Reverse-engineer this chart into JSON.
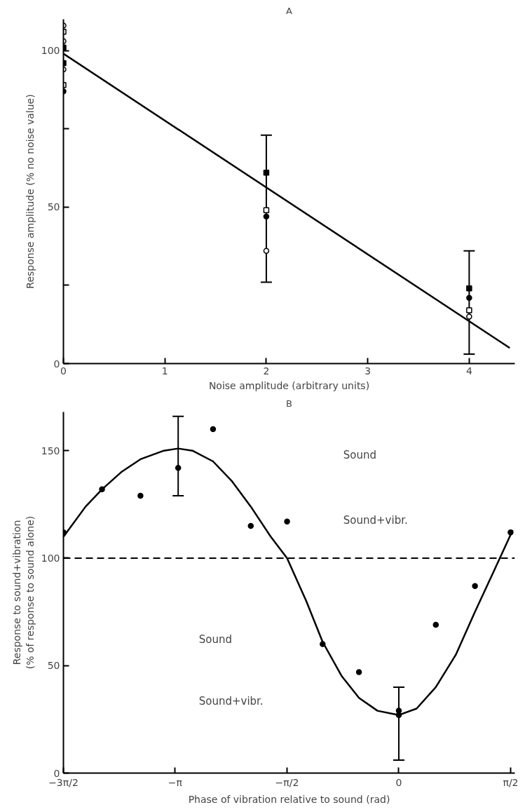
{
  "chart_data": [
    {
      "type": "scatter",
      "title": "A",
      "xlabel": "Noise amplitude (arbitrary units)",
      "ylabel": "Response amplitude (% no noise value)",
      "xlim": [
        0,
        4.45
      ],
      "ylim": [
        0,
        110
      ],
      "xticks": [
        0,
        1,
        2,
        3,
        4
      ],
      "yticks": [
        0,
        {
          "value": 25,
          "label": null
        },
        50,
        {
          "value": 75,
          "label": null
        },
        100
      ],
      "grid": false,
      "series": [
        {
          "marker": "square",
          "color": "#000000",
          "x": [
            0,
            0,
            2,
            4
          ],
          "values": [
            101,
            96,
            61,
            24
          ]
        },
        {
          "marker": "square",
          "color": "#ffffff",
          "x": [
            0,
            0,
            2,
            4
          ],
          "values": [
            106,
            89,
            49,
            17
          ],
          "errors": [
            null,
            null,
            [
              26,
              73
            ],
            [
              3,
              36
            ]
          ]
        },
        {
          "marker": "circle",
          "color": "#000000",
          "x": [
            0,
            2,
            4
          ],
          "values": [
            87,
            47,
            21
          ]
        },
        {
          "marker": "circle",
          "color": "#ffffff",
          "x": [
            0,
            0,
            0,
            2,
            4
          ],
          "values": [
            108,
            103,
            94,
            36,
            15
          ]
        },
        {
          "type": "line",
          "color": "#000000",
          "marker": "none",
          "x": [
            0,
            4.4
          ],
          "values": [
            99,
            5
          ]
        }
      ]
    },
    {
      "type": "scatter",
      "title": "B",
      "xlabel": "Phase of vibration relative to sound (rad)",
      "ylabel": "Response to sound+vibration\n(% of response to sound alone)",
      "xlim": [
        -4.712,
        1.63
      ],
      "ylim": [
        0,
        168
      ],
      "xticks": [
        {
          "value": -4.712,
          "label": "−3π/2"
        },
        {
          "value": -3.142,
          "label": "−π"
        },
        {
          "value": -1.571,
          "label": "−π/2"
        },
        0,
        {
          "value": 1.571,
          "label": "π/2"
        }
      ],
      "yticks": [
        0,
        50,
        100,
        150
      ],
      "grid": false,
      "ref_lines": [
        {
          "axis": "y",
          "value": 100,
          "line_style": "dashed",
          "color": "#000000"
        }
      ],
      "annotations": [
        "Sound",
        "Sound+vibr.",
        "Sound",
        "Sound+vibr."
      ],
      "series": [
        {
          "marker": "circle",
          "color": "#000000",
          "x": [
            -4.71,
            -4.17,
            -3.63,
            -3.1,
            -2.61,
            -2.08,
            -1.57,
            -1.07,
            -0.56,
            0,
            0,
            0.52,
            1.07,
            1.57
          ],
          "values": [
            112,
            132,
            129,
            142,
            160,
            115,
            117,
            60,
            47,
            29,
            27,
            69,
            87,
            112
          ],
          "errors": [
            null,
            null,
            null,
            [
              129,
              166
            ],
            null,
            null,
            null,
            null,
            null,
            [
              6,
              40
            ],
            null,
            null,
            null,
            null
          ]
        },
        {
          "type": "line",
          "color": "#000000",
          "marker": "none",
          "x": [
            -4.71,
            -4.4,
            -4.17,
            -3.9,
            -3.63,
            -3.3,
            -3.1,
            -2.9,
            -2.61,
            -2.35,
            -2.08,
            -1.8,
            -1.57,
            -1.3,
            -1.07,
            -0.8,
            -0.56,
            -0.3,
            0,
            0.25,
            0.52,
            0.8,
            1.07,
            1.35,
            1.6
          ],
          "values": [
            110,
            124,
            132,
            140,
            146,
            150,
            151,
            150,
            145,
            136,
            124,
            110,
            100,
            80,
            61,
            45,
            35,
            29,
            27,
            30,
            40,
            55,
            75,
            95,
            113
          ]
        }
      ]
    }
  ]
}
